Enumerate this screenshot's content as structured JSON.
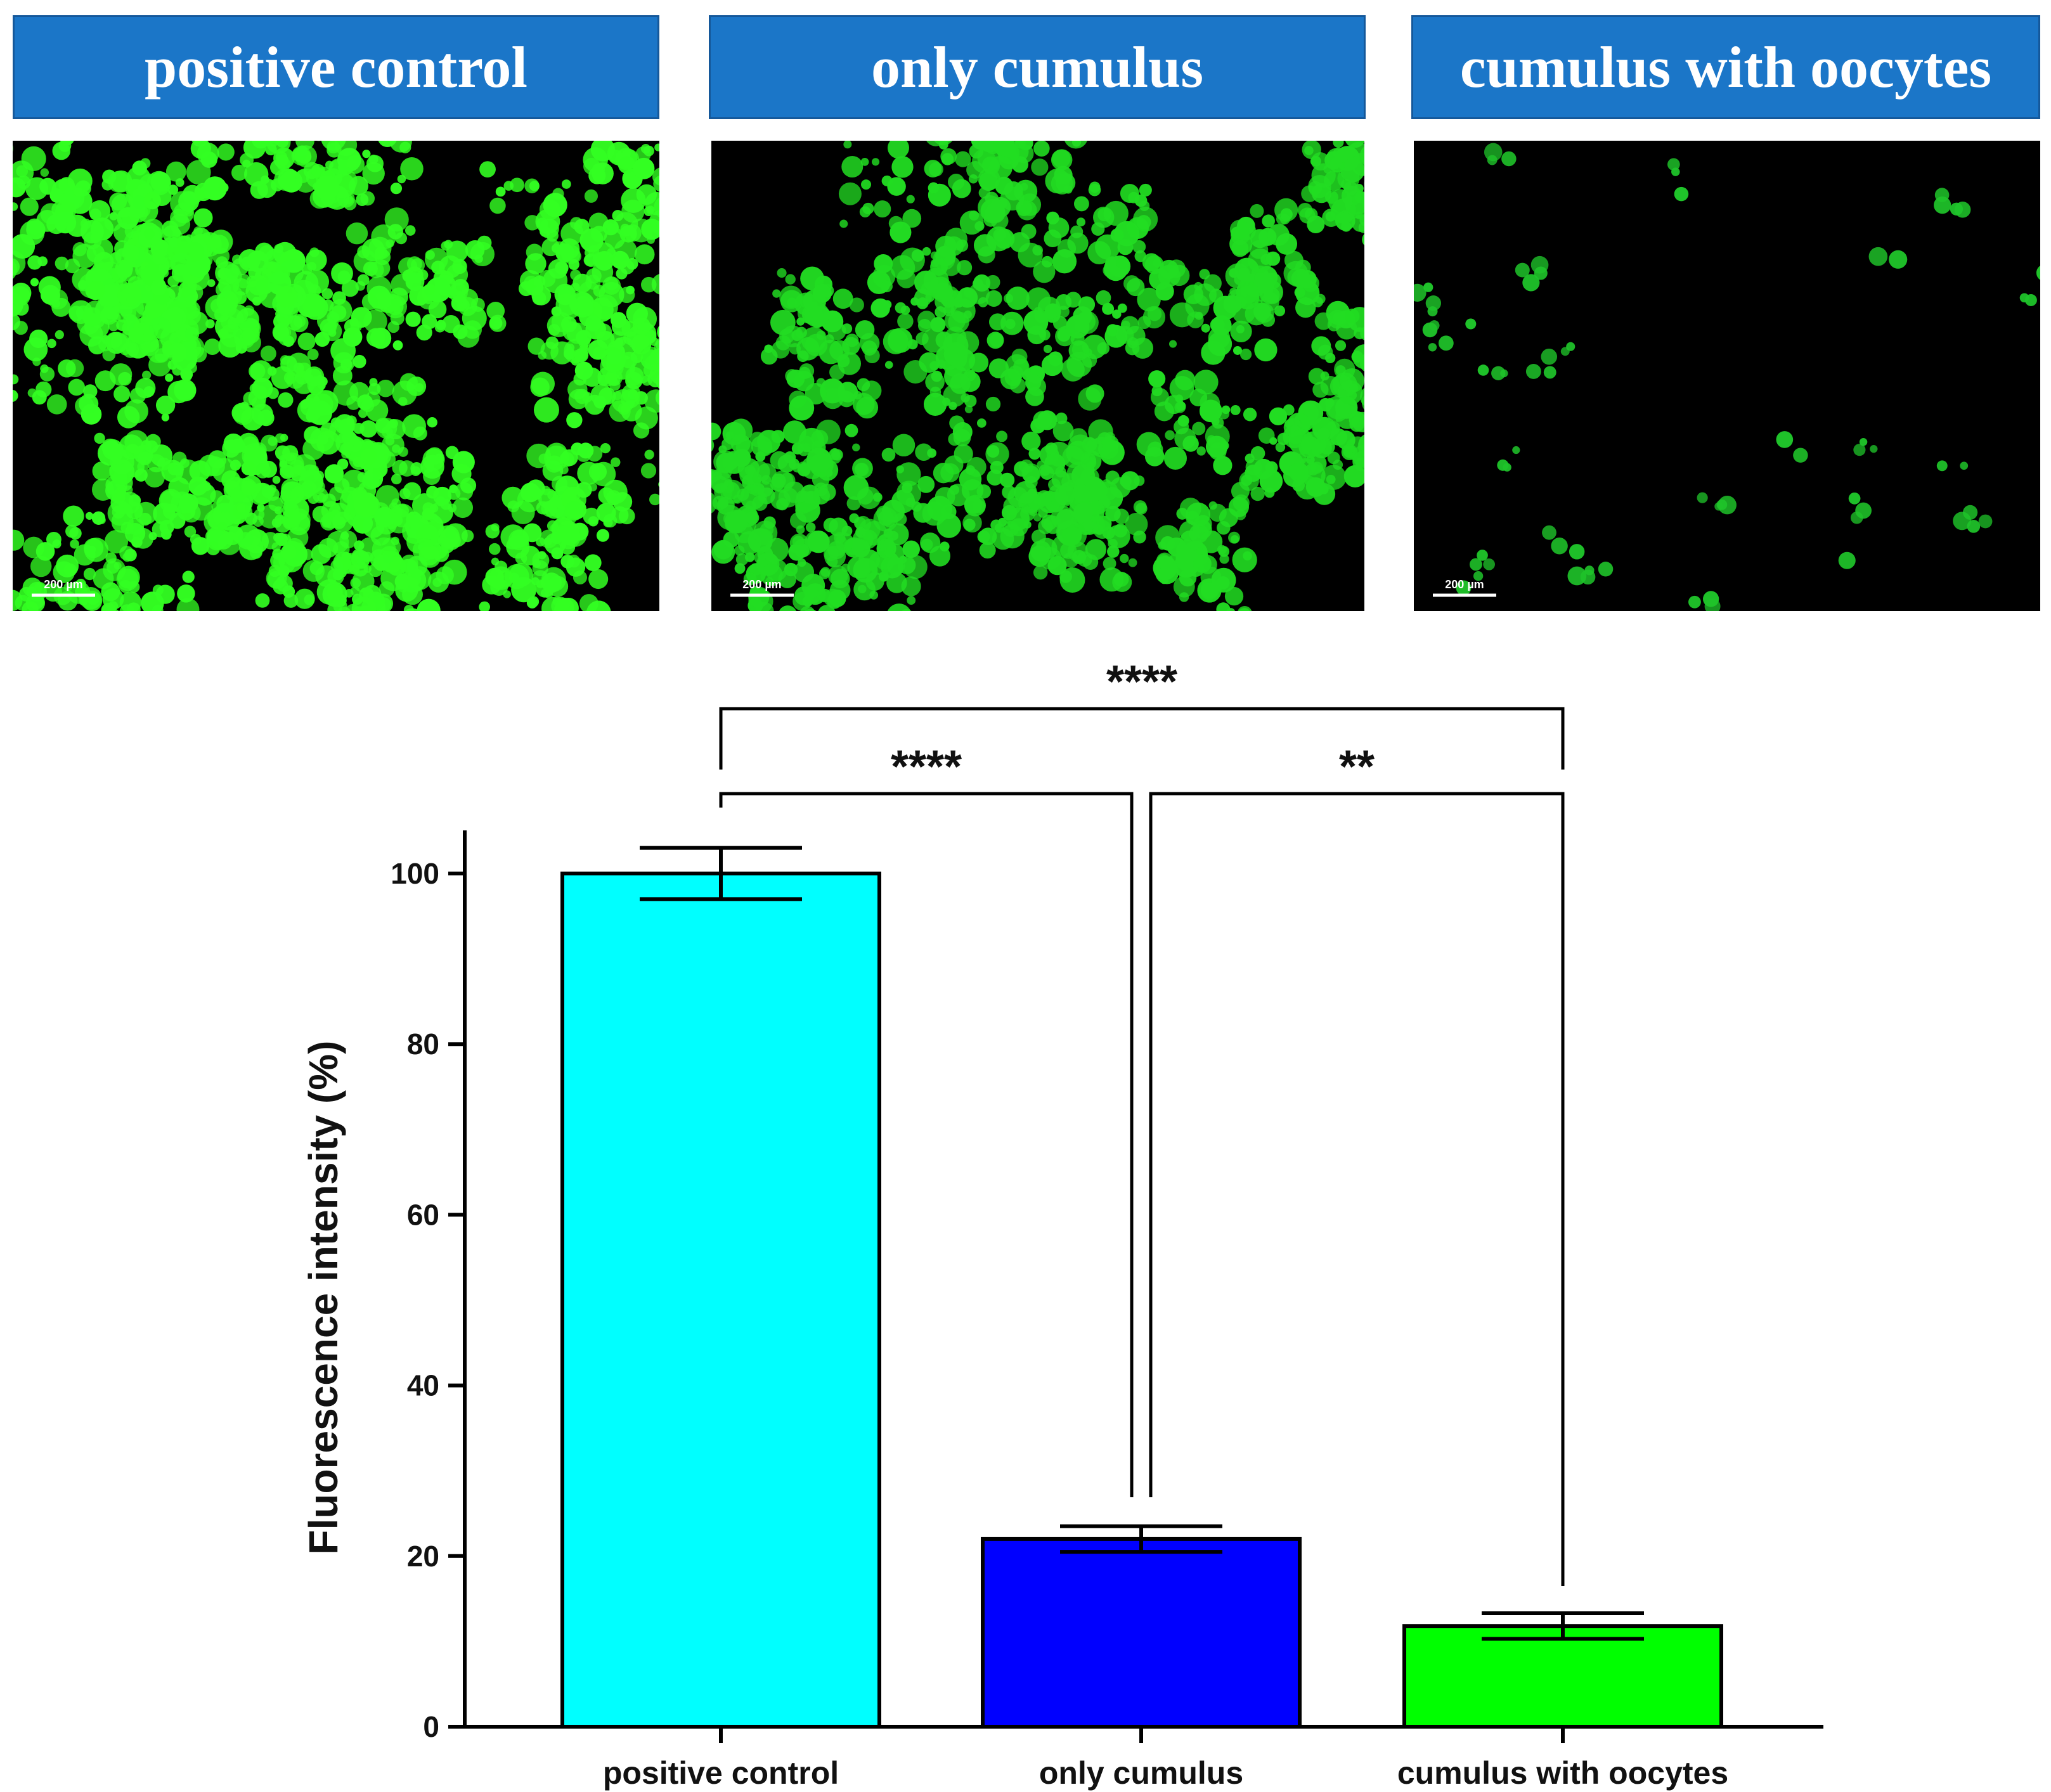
{
  "panels": [
    {
      "title": "positive control",
      "scale_bar": "200 µm",
      "density": 1.0,
      "color": "#33ff22"
    },
    {
      "title": "only cumulus",
      "scale_bar": "200 µm",
      "density": 0.6,
      "color": "#22dd22"
    },
    {
      "title": "cumulus with oocytes",
      "scale_bar": "200 µm",
      "density": 0.25,
      "color": "#1fc42a"
    }
  ],
  "chart_data": {
    "type": "bar",
    "categories": [
      "positive control",
      "only cumulus",
      "cumulus with oocytes"
    ],
    "values": [
      100,
      22,
      11.8
    ],
    "errors": [
      3,
      1.5,
      1.5
    ],
    "colors": [
      "#00ffff",
      "#0000ff",
      "#00ff00"
    ],
    "ylabel": "Fluorescence intensity (%)",
    "ylim": [
      0,
      105
    ],
    "yticks": [
      0,
      20,
      40,
      60,
      80,
      100
    ],
    "grid": false,
    "significance": [
      {
        "from": 0,
        "to": 2,
        "label": "****"
      },
      {
        "from": 0,
        "to": 1,
        "label": "****"
      },
      {
        "from": 1,
        "to": 2,
        "label": "**"
      }
    ]
  }
}
